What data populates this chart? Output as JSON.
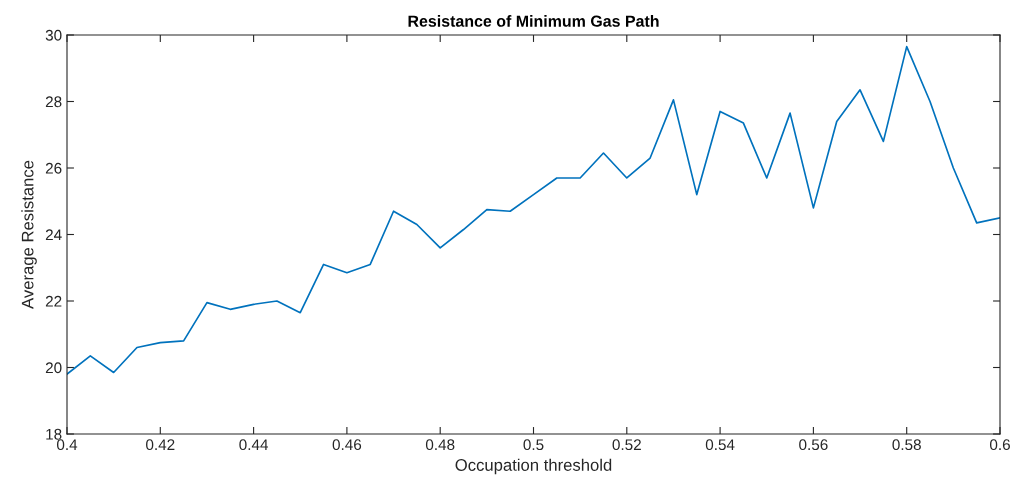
{
  "chart_data": {
    "type": "line",
    "title": "Resistance of Minimum Gas Path",
    "xlabel": "Occupation threshold",
    "ylabel": "Average Resistance",
    "x": [
      0.4,
      0.405,
      0.41,
      0.415,
      0.42,
      0.425,
      0.43,
      0.435,
      0.44,
      0.445,
      0.45,
      0.455,
      0.46,
      0.465,
      0.47,
      0.475,
      0.48,
      0.485,
      0.49,
      0.495,
      0.5,
      0.505,
      0.51,
      0.515,
      0.52,
      0.525,
      0.53,
      0.535,
      0.54,
      0.545,
      0.55,
      0.555,
      0.56,
      0.565,
      0.57,
      0.575,
      0.58,
      0.585,
      0.59,
      0.595,
      0.6
    ],
    "series": [
      {
        "color": "#0072bd",
        "values": [
          19.8,
          20.35,
          19.85,
          20.6,
          20.75,
          20.8,
          21.95,
          21.75,
          21.9,
          22.0,
          21.65,
          23.1,
          22.85,
          23.1,
          24.7,
          24.3,
          23.6,
          24.15,
          24.75,
          24.7,
          25.2,
          25.7,
          25.7,
          26.45,
          25.7,
          26.3,
          28.05,
          25.2,
          27.7,
          27.35,
          25.7,
          27.65,
          24.8,
          27.4,
          28.35,
          26.8,
          29.65,
          28.0,
          26.0,
          24.35,
          24.5
        ]
      }
    ],
    "xlim": [
      0.4,
      0.6
    ],
    "xticks": [
      0.4,
      0.42,
      0.44,
      0.46,
      0.48,
      0.5,
      0.52,
      0.54,
      0.56,
      0.58,
      0.6
    ],
    "ylim": [
      18,
      30
    ],
    "yticks": [
      18,
      20,
      22,
      24,
      26,
      28,
      30
    ],
    "grid": false,
    "marker": "none",
    "line_style": "solid"
  }
}
